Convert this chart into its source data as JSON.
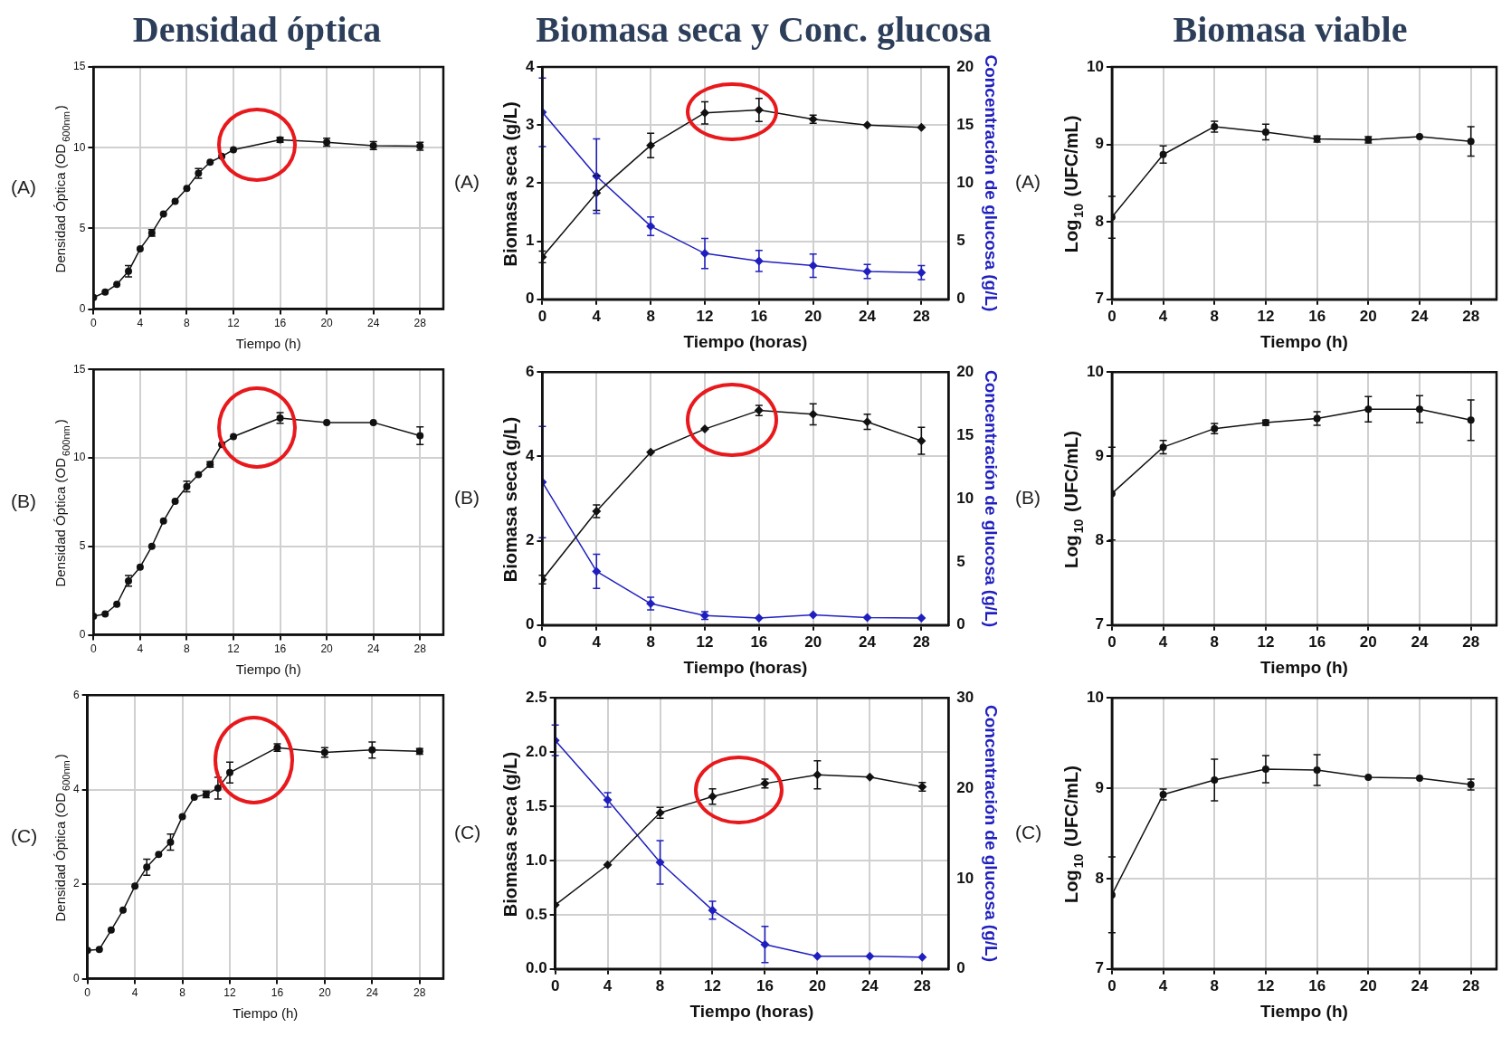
{
  "chart_data": [
    {
      "type": "line",
      "title": "Densidad óptica",
      "xlabel": "Tiempo (h)",
      "ylabel": "Densidad Óptica (OD$_{600nm}$)",
      "annotations": [
        "(A)"
      ],
      "x": [
        0,
        1,
        2,
        3,
        4,
        5,
        6,
        7,
        8,
        9,
        10,
        11,
        12,
        16,
        20,
        24,
        28
      ],
      "xlim": [
        0,
        30
      ],
      "xticks": [
        0,
        4,
        8,
        12,
        16,
        20,
        24,
        28
      ],
      "ylim": [
        0,
        15
      ],
      "yticks": [
        0,
        5,
        10,
        15
      ],
      "grid": true,
      "marker": "circle",
      "series": [
        {
          "color": "#111111",
          "values": [
            0.72,
            1.05,
            1.53,
            2.34,
            3.73,
            4.72,
            5.89,
            6.67,
            7.48,
            8.41,
            9.1,
            9.46,
            9.87,
            10.49,
            10.34,
            10.13,
            10.09
          ],
          "errors": [
            null,
            null,
            null,
            0.35,
            null,
            0.2,
            null,
            null,
            null,
            0.3,
            null,
            null,
            null,
            0.15,
            0.25,
            0.25,
            0.25
          ]
        }
      ]
    },
    {
      "type": "line",
      "title": "Biomasa seca y Conc. glucosa",
      "xlabel": "Tiempo (horas)",
      "ylabel": "Biomasa seca (g/L)",
      "y2label": "Concentración de glucosa (g/L)",
      "annotations": [
        "(A)"
      ],
      "x": [
        0,
        4,
        8,
        12,
        16,
        20,
        24,
        28
      ],
      "xlim": [
        0,
        30
      ],
      "xticks": [
        0,
        4,
        8,
        12,
        16,
        20,
        24,
        28
      ],
      "ylim": [
        0,
        4
      ],
      "yticks": [
        0,
        1,
        2,
        3,
        4
      ],
      "y2lim": [
        0,
        20
      ],
      "y2ticks": [
        0,
        5,
        10,
        15,
        20
      ],
      "grid": true,
      "marker": "diamond",
      "series": [
        {
          "color": "#111111",
          "values": [
            0.73,
            1.83,
            2.65,
            3.21,
            3.26,
            3.1,
            3.0,
            2.96
          ],
          "errors": [
            0.1,
            0.3,
            0.21,
            0.19,
            0.2,
            0.07,
            null,
            null
          ]
        },
        {
          "color": "#1f1fbf",
          "axis": "y2",
          "values": [
            16.1,
            10.6,
            6.3,
            3.95,
            3.3,
            2.9,
            2.4,
            2.3
          ],
          "errors": [
            2.95,
            3.2,
            0.8,
            1.3,
            0.9,
            1.0,
            0.6,
            0.6
          ]
        }
      ]
    },
    {
      "type": "line",
      "title": "Biomasa viable",
      "xlabel": "Tiempo (h)",
      "ylabel": "Log$_{10}$ (UFC/mL)",
      "annotations": [
        "(A)"
      ],
      "x": [
        0,
        4,
        8,
        12,
        16,
        20,
        24,
        28
      ],
      "xlim": [
        0,
        30
      ],
      "xticks": [
        0,
        4,
        8,
        12,
        16,
        20,
        24,
        28
      ],
      "ylim": [
        7,
        10
      ],
      "yticks": [
        7,
        8,
        9,
        10
      ],
      "grid": true,
      "marker": "circle",
      "series": [
        {
          "color": "#111111",
          "values": [
            8.06,
            8.87,
            9.23,
            9.16,
            9.07,
            9.06,
            9.1,
            9.04
          ],
          "errors": [
            0.27,
            0.11,
            0.07,
            0.1,
            0.04,
            0.04,
            null,
            0.19
          ]
        }
      ]
    },
    {
      "type": "line",
      "xlabel": "Tiempo (h)",
      "ylabel": "Densidad Óptica (OD$_{600nm}$)",
      "annotations": [
        "(B)"
      ],
      "x": [
        0,
        1,
        2,
        3,
        4,
        5,
        6,
        7,
        8,
        9,
        10,
        11,
        12,
        16,
        20,
        24,
        28
      ],
      "xlim": [
        0,
        30
      ],
      "xticks": [
        0,
        4,
        8,
        12,
        16,
        20,
        24,
        28
      ],
      "ylim": [
        0,
        15
      ],
      "yticks": [
        0,
        5,
        10,
        15
      ],
      "grid": true,
      "marker": "circle",
      "series": [
        {
          "color": "#111111",
          "values": [
            1.05,
            1.18,
            1.73,
            3.05,
            3.83,
            5.0,
            6.43,
            7.55,
            8.38,
            9.05,
            9.63,
            10.75,
            11.2,
            12.25,
            12.0,
            12.0,
            11.25
          ],
          "errors": [
            null,
            null,
            null,
            0.3,
            null,
            null,
            null,
            null,
            0.3,
            null,
            0.15,
            null,
            null,
            0.3,
            null,
            null,
            0.5
          ]
        }
      ]
    },
    {
      "type": "line",
      "xlabel": "Tiempo (horas)",
      "ylabel": "Biomasa seca (g/L)",
      "y2label": "Concentración de glucosa (g/L)",
      "annotations": [
        "(B)"
      ],
      "x": [
        0,
        4,
        8,
        12,
        16,
        20,
        24,
        28
      ],
      "xlim": [
        0,
        30
      ],
      "xticks": [
        0,
        4,
        8,
        12,
        16,
        20,
        24,
        28
      ],
      "ylim": [
        0,
        6
      ],
      "yticks": [
        0,
        2,
        4,
        6
      ],
      "y2lim": [
        0,
        20
      ],
      "y2ticks": [
        0,
        5,
        10,
        15,
        20
      ],
      "grid": true,
      "marker": "diamond",
      "series": [
        {
          "color": "#111111",
          "values": [
            1.08,
            2.7,
            4.1,
            4.65,
            5.09,
            5.0,
            4.82,
            4.37
          ],
          "errors": [
            0.1,
            0.15,
            null,
            null,
            0.12,
            0.25,
            0.18,
            0.32
          ]
        },
        {
          "color": "#1f1fbf",
          "axis": "y2",
          "values": [
            11.3,
            4.25,
            1.7,
            0.75,
            0.55,
            0.8,
            0.6,
            0.55
          ],
          "errors": [
            4.4,
            1.35,
            0.5,
            0.3,
            null,
            null,
            null,
            null
          ]
        }
      ]
    },
    {
      "type": "line",
      "xlabel": "Tiempo (h)",
      "ylabel": "Log$_{10}$ (UFC/mL)",
      "annotations": [
        "(B)"
      ],
      "x": [
        0,
        4,
        8,
        12,
        16,
        20,
        24,
        28
      ],
      "xlim": [
        0,
        30
      ],
      "xticks": [
        0,
        4,
        8,
        12,
        16,
        20,
        24,
        28
      ],
      "ylim": [
        7,
        10
      ],
      "yticks": [
        7,
        8,
        9,
        10
      ],
      "grid": true,
      "marker": "circle",
      "series": [
        {
          "color": "#111111",
          "values": [
            8.56,
            9.11,
            9.33,
            9.4,
            9.45,
            9.56,
            9.56,
            9.43
          ],
          "errors": [
            0.55,
            0.08,
            0.06,
            0.03,
            0.08,
            0.15,
            0.16,
            0.24
          ]
        }
      ]
    },
    {
      "type": "line",
      "xlabel": "Tiempo (h)",
      "ylabel": "Densidad Óptica (OD$_{600nm}$)",
      "annotations": [
        "(C)"
      ],
      "x": [
        0,
        1,
        2,
        3,
        4,
        5,
        6,
        7,
        8,
        9,
        10,
        11,
        12,
        16,
        20,
        24,
        28
      ],
      "xlim": [
        0,
        30
      ],
      "xticks": [
        0,
        4,
        8,
        12,
        16,
        20,
        24,
        28
      ],
      "ylim": [
        0,
        6
      ],
      "yticks": [
        0,
        2,
        4,
        6
      ],
      "grid": true,
      "marker": "circle",
      "series": [
        {
          "color": "#111111",
          "values": [
            0.6,
            0.62,
            1.03,
            1.45,
            1.96,
            2.36,
            2.63,
            2.89,
            3.43,
            3.84,
            3.9,
            4.03,
            4.36,
            4.89,
            4.79,
            4.84,
            4.81
          ],
          "errors": [
            null,
            null,
            null,
            null,
            null,
            0.17,
            null,
            0.17,
            null,
            null,
            0.07,
            0.23,
            0.22,
            0.08,
            0.1,
            0.17,
            0.06
          ]
        }
      ]
    },
    {
      "type": "line",
      "xlabel": "Tiempo (horas)",
      "ylabel": "Biomasa seca (g/L)",
      "y2label": "Concentración de glucosa (g/L)",
      "annotations": [
        "(C)"
      ],
      "x": [
        0,
        4,
        8,
        12,
        16,
        20,
        24,
        28
      ],
      "xlim": [
        0,
        30
      ],
      "xticks": [
        0,
        4,
        8,
        12,
        16,
        20,
        24,
        28
      ],
      "ylim": [
        0,
        2.5
      ],
      "yticks": [
        {
          "value": 0,
          "label": "0.0"
        },
        0.5,
        {
          "value": 1,
          "label": "1.0"
        },
        1.5,
        {
          "value": 2,
          "label": "2.0"
        },
        2.5
      ],
      "y2lim": [
        0,
        30
      ],
      "y2ticks": [
        0,
        10,
        20,
        30
      ],
      "grid": true,
      "marker": "diamond",
      "series": [
        {
          "color": "#111111",
          "values": [
            0.59,
            0.96,
            1.44,
            1.59,
            1.71,
            1.79,
            1.77,
            1.68
          ],
          "errors": [
            null,
            null,
            0.05,
            0.07,
            0.04,
            0.13,
            null,
            0.04
          ]
        },
        {
          "color": "#1f1fbf",
          "axis": "y2",
          "values": [
            25.3,
            18.7,
            11.8,
            6.5,
            2.7,
            1.4,
            1.4,
            1.3
          ],
          "errors": [
            1.7,
            0.8,
            2.4,
            1.0,
            2.0,
            null,
            null,
            null
          ]
        }
      ]
    },
    {
      "type": "line",
      "xlabel": "Tiempo (h)",
      "ylabel": "Log$_{10}$ (UFC/mL)",
      "annotations": [
        "(C)"
      ],
      "x": [
        0,
        4,
        8,
        12,
        16,
        20,
        24,
        28
      ],
      "xlim": [
        0,
        30
      ],
      "xticks": [
        0,
        4,
        8,
        12,
        16,
        20,
        24,
        28
      ],
      "ylim": [
        7,
        10
      ],
      "yticks": [
        7,
        8,
        9,
        10
      ],
      "grid": true,
      "marker": "circle",
      "series": [
        {
          "color": "#111111",
          "values": [
            7.82,
            8.93,
            9.09,
            9.21,
            9.2,
            9.12,
            9.11,
            9.04
          ],
          "errors": [
            0.42,
            0.06,
            0.23,
            0.15,
            0.17,
            null,
            null,
            0.06
          ]
        }
      ]
    }
  ]
}
